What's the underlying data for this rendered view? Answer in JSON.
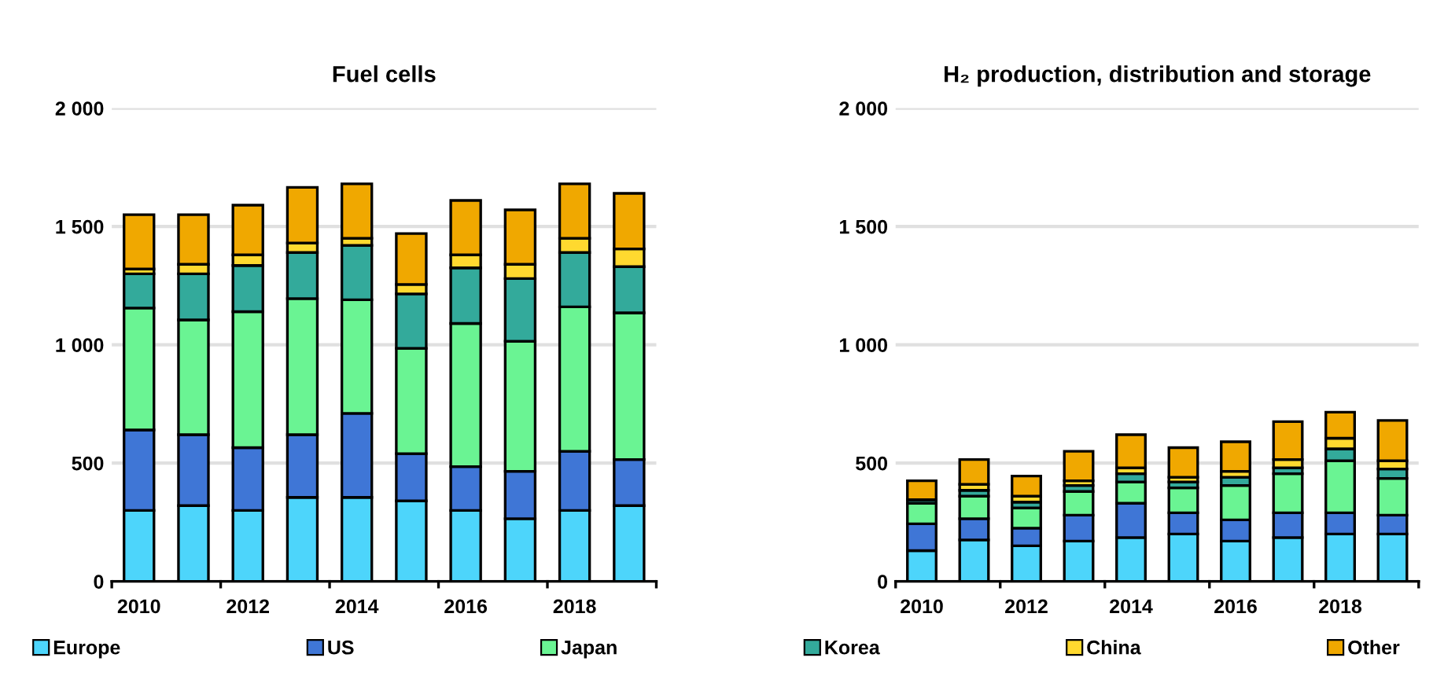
{
  "chart_data": [
    {
      "type": "bar",
      "title": "Fuel cells",
      "stacked": true,
      "grid": "y",
      "legend": "bottom",
      "categories": [
        "2010",
        null,
        "2012",
        null,
        "2014",
        null,
        "2016",
        null,
        "2018",
        null
      ],
      "ylim": [
        0,
        2000
      ],
      "yticks": [
        {
          "value": 0,
          "label": "0"
        },
        {
          "value": 500,
          "label": "500"
        },
        {
          "value": 1000,
          "label": "1 000"
        },
        {
          "value": 1500,
          "label": "1 500"
        },
        {
          "value": 2000,
          "label": "2 000"
        }
      ],
      "series": [
        {
          "name": "Europe",
          "color": "#4dd5fb",
          "values": [
            300,
            320,
            300,
            355,
            355,
            340,
            300,
            265,
            300,
            320
          ]
        },
        {
          "name": "US",
          "color": "#3f76d6",
          "values": [
            340,
            300,
            265,
            265,
            355,
            200,
            185,
            200,
            250,
            195
          ]
        },
        {
          "name": "Japan",
          "color": "#6af493",
          "values": [
            515,
            485,
            575,
            575,
            480,
            445,
            605,
            550,
            610,
            620
          ]
        },
        {
          "name": "Korea",
          "color": "#33aa9b",
          "values": [
            145,
            195,
            195,
            195,
            230,
            230,
            235,
            265,
            230,
            195
          ]
        },
        {
          "name": "China",
          "color": "#ffd92f",
          "values": [
            20,
            40,
            45,
            40,
            30,
            40,
            55,
            60,
            60,
            75
          ]
        },
        {
          "name": "Other",
          "color": "#f0a800",
          "values": [
            230,
            210,
            210,
            235,
            230,
            215,
            230,
            230,
            230,
            235
          ]
        }
      ]
    },
    {
      "type": "bar",
      "title": "H₂ production, distribution and storage",
      "stacked": true,
      "grid": "y",
      "categories": [
        "2010",
        null,
        "2012",
        null,
        "2014",
        null,
        "2016",
        null,
        "2018",
        null
      ],
      "ylim": [
        0,
        2000
      ],
      "yticks": [
        {
          "value": 0,
          "label": "0"
        },
        {
          "value": 500,
          "label": "500"
        },
        {
          "value": 1000,
          "label": "1 000"
        },
        {
          "value": 1500,
          "label": "1 500"
        },
        {
          "value": 2000,
          "label": "2 000"
        }
      ],
      "series": [
        {
          "color": "#4dd5fb",
          "values": [
            130,
            175,
            150,
            170,
            185,
            200,
            170,
            185,
            200,
            200
          ]
        },
        {
          "color": "#3f76d6",
          "values": [
            113,
            90,
            75,
            110,
            145,
            90,
            90,
            105,
            90,
            80
          ]
        },
        {
          "color": "#6af493",
          "values": [
            87,
            95,
            85,
            100,
            90,
            105,
            145,
            165,
            220,
            155
          ]
        },
        {
          "color": "#33aa9b",
          "values": [
            15,
            25,
            25,
            25,
            35,
            25,
            35,
            25,
            50,
            40
          ]
        },
        {
          "color": "#ffd92f",
          "values": [
            null,
            25,
            25,
            20,
            25,
            20,
            25,
            35,
            45,
            35
          ]
        },
        {
          "color": "#f0a800",
          "values": [
            80,
            105,
            85,
            125,
            140,
            125,
            125,
            160,
            110,
            170
          ]
        }
      ]
    }
  ]
}
